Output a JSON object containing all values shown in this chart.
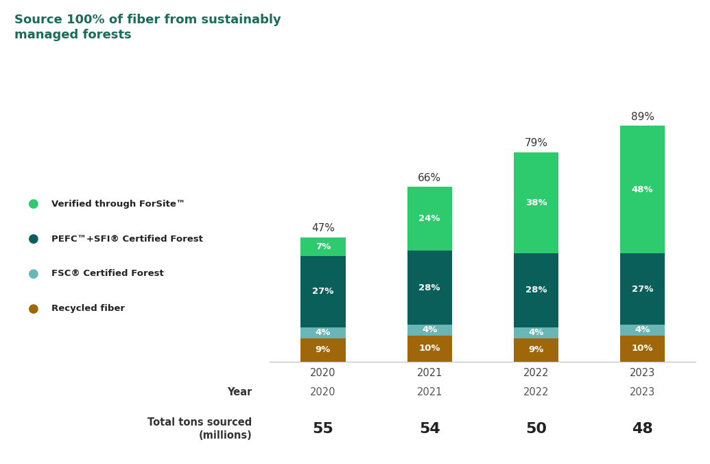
{
  "title": "Source 100% of fiber from sustainably\nmanaged forests",
  "title_color": "#1a6b5a",
  "years": [
    "2020",
    "2021",
    "2022",
    "2023"
  ],
  "total_tons": [
    "55",
    "54",
    "50",
    "48"
  ],
  "segments": {
    "Recycled fiber": [
      9,
      10,
      9,
      10
    ],
    "FSC® Certified Forest": [
      4,
      4,
      4,
      4
    ],
    "PEFC™+SFI® Certified Forest": [
      27,
      28,
      28,
      27
    ],
    "Verified through ForSite™": [
      7,
      24,
      38,
      48
    ]
  },
  "segment_colors": {
    "Recycled fiber": "#a0670a",
    "FSC® Certified Forest": "#6ab5b5",
    "PEFC™+SFI® Certified Forest": "#0a5f5a",
    "Verified through ForSite™": "#2ecb6e"
  },
  "total_pct": [
    "47%",
    "66%",
    "79%",
    "89%"
  ],
  "bar_width": 0.42,
  "xlabel": "Year",
  "total_tons_label": "Total tons sourced\n(millions)",
  "background_color": "#ffffff",
  "legend_order": [
    "Verified through ForSite™",
    "PEFC™+SFI® Certified Forest",
    "FSC® Certified Forest",
    "Recycled fiber"
  ]
}
